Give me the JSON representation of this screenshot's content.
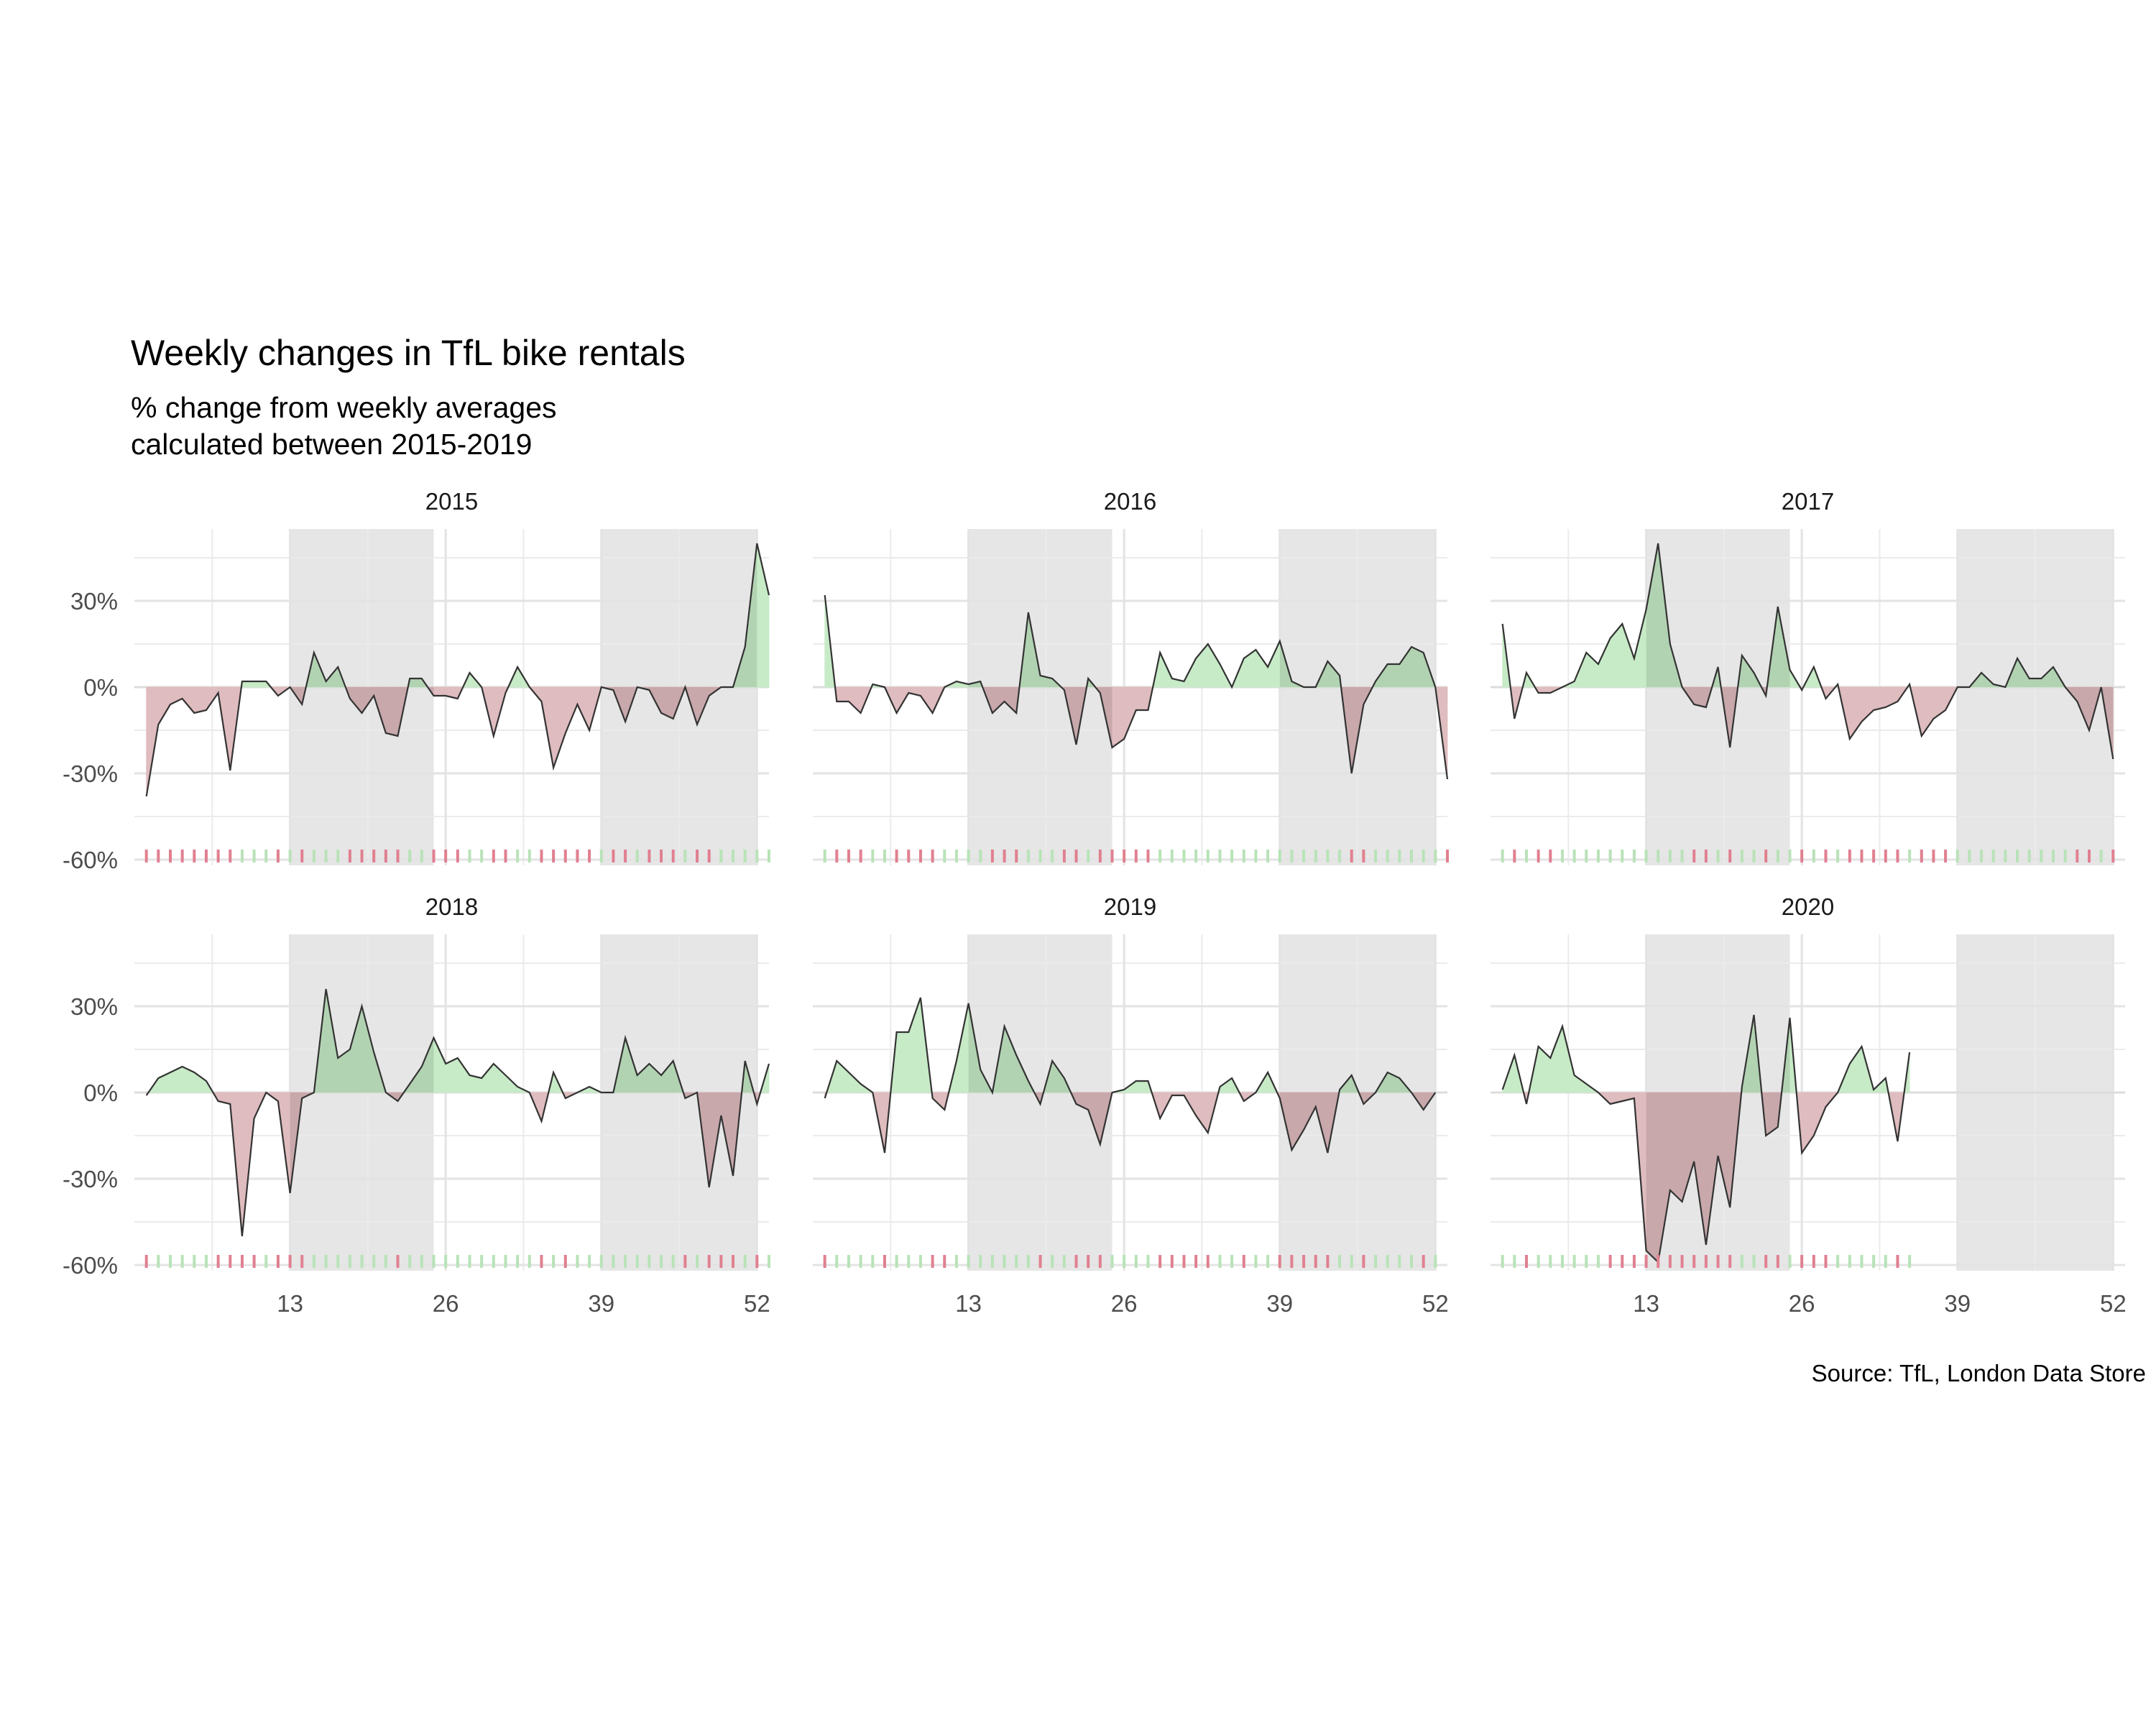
{
  "title": "Weekly changes in TfL bike rentals",
  "subtitle": "% change from weekly averages\ncalculated between 2015-2019",
  "caption": "Source: TfL, London Data Store",
  "colors": {
    "positive_fill": "#c7ebc7",
    "negative_fill": "#dfbcbf",
    "positive_rug": "#b8e3b8",
    "negative_rug": "#e08090",
    "shade": "#e6e6e6",
    "line": "#333333",
    "grid": "#ebebeb"
  },
  "chart_data": {
    "type": "area",
    "facet_by": "year",
    "x_ticks": [
      13,
      26,
      39,
      52
    ],
    "y_ticks": [
      -0.6,
      -0.3,
      0,
      0.3
    ],
    "y_tick_labels": [
      "-60%",
      "-30%",
      "0%",
      "30%"
    ],
    "x_range": [
      0,
      53
    ],
    "y_range": [
      -0.62,
      0.55
    ],
    "grid": true,
    "shaded_weeks": [
      [
        13,
        25
      ],
      [
        39,
        52
      ]
    ],
    "panels": [
      {
        "year": "2015",
        "values": [
          -0.38,
          -0.13,
          -0.06,
          -0.04,
          -0.09,
          -0.08,
          -0.02,
          -0.29,
          0.02,
          0.02,
          0.02,
          -0.03,
          0.0,
          -0.06,
          0.12,
          0.02,
          0.07,
          -0.04,
          -0.09,
          -0.03,
          -0.16,
          -0.17,
          0.03,
          0.03,
          -0.03,
          -0.03,
          -0.04,
          0.05,
          0.0,
          -0.17,
          -0.02,
          0.07,
          0.0,
          -0.05,
          -0.28,
          -0.16,
          -0.06,
          -0.15,
          0.0,
          -0.01,
          -0.12,
          0.0,
          -0.01,
          -0.09,
          -0.11,
          0.0,
          -0.13,
          -0.03,
          0.0,
          0.0,
          0.14,
          0.5,
          0.32
        ]
      },
      {
        "year": "2016",
        "values": [
          0.32,
          -0.05,
          -0.05,
          -0.09,
          0.01,
          0.0,
          -0.09,
          -0.02,
          -0.03,
          -0.09,
          0.0,
          0.02,
          0.01,
          0.02,
          -0.09,
          -0.05,
          -0.09,
          0.26,
          0.04,
          0.03,
          -0.01,
          -0.2,
          0.03,
          -0.02,
          -0.21,
          -0.18,
          -0.08,
          -0.08,
          0.12,
          0.03,
          0.02,
          0.1,
          0.15,
          0.08,
          0.0,
          0.1,
          0.13,
          0.07,
          0.16,
          0.02,
          0.0,
          0.0,
          0.09,
          0.04,
          -0.3,
          -0.06,
          0.02,
          0.08,
          0.08,
          0.14,
          0.12,
          0.0,
          -0.32
        ]
      },
      {
        "year": "2017",
        "values": [
          0.22,
          -0.11,
          0.05,
          -0.02,
          -0.02,
          0.0,
          0.02,
          0.12,
          0.08,
          0.17,
          0.22,
          0.1,
          0.27,
          0.5,
          0.15,
          0.0,
          -0.06,
          -0.07,
          0.07,
          -0.21,
          0.11,
          0.05,
          -0.03,
          0.28,
          0.06,
          -0.01,
          0.07,
          -0.04,
          0.01,
          -0.18,
          -0.12,
          -0.08,
          -0.07,
          -0.05,
          0.01,
          -0.17,
          -0.11,
          -0.08,
          0.0,
          0.0,
          0.05,
          0.01,
          0.0,
          0.1,
          0.03,
          0.03,
          0.07,
          0.0,
          -0.05,
          -0.15,
          0.0,
          -0.25
        ]
      },
      {
        "year": "2018",
        "values": [
          -0.01,
          0.05,
          0.07,
          0.09,
          0.07,
          0.04,
          -0.03,
          -0.04,
          -0.5,
          -0.09,
          0.0,
          -0.03,
          -0.35,
          -0.02,
          0.0,
          0.36,
          0.12,
          0.15,
          0.3,
          0.14,
          0.0,
          -0.03,
          0.03,
          0.09,
          0.19,
          0.1,
          0.12,
          0.06,
          0.05,
          0.1,
          0.06,
          0.02,
          0.0,
          -0.1,
          0.07,
          -0.02,
          0.0,
          0.02,
          0.0,
          0.0,
          0.19,
          0.06,
          0.1,
          0.06,
          0.11,
          -0.02,
          0.0,
          -0.33,
          -0.08,
          -0.29,
          0.11,
          -0.04,
          0.1
        ]
      },
      {
        "year": "2019",
        "values": [
          -0.02,
          0.11,
          0.07,
          0.03,
          0.0,
          -0.21,
          0.21,
          0.21,
          0.33,
          -0.02,
          -0.06,
          0.11,
          0.31,
          0.08,
          0.0,
          0.23,
          0.13,
          0.04,
          -0.04,
          0.11,
          0.05,
          -0.04,
          -0.06,
          -0.18,
          0.0,
          0.01,
          0.04,
          0.04,
          -0.09,
          -0.01,
          -0.01,
          -0.08,
          -0.14,
          0.02,
          0.05,
          -0.03,
          0.0,
          0.07,
          -0.02,
          -0.2,
          -0.13,
          -0.05,
          -0.21,
          0.01,
          0.06,
          -0.04,
          0.0,
          0.07,
          0.05,
          0.0,
          -0.06,
          0.0
        ]
      },
      {
        "year": "2020",
        "values": [
          0.01,
          0.13,
          -0.04,
          0.16,
          0.12,
          0.23,
          0.06,
          0.03,
          0.0,
          -0.04,
          -0.03,
          -0.02,
          -0.55,
          -0.59,
          -0.34,
          -0.38,
          -0.24,
          -0.53,
          -0.22,
          -0.4,
          0.02,
          0.27,
          -0.15,
          -0.12,
          0.26,
          -0.21,
          -0.15,
          -0.05,
          0.0,
          0.1,
          0.16,
          0.01,
          0.05,
          -0.17,
          0.14
        ]
      }
    ]
  }
}
